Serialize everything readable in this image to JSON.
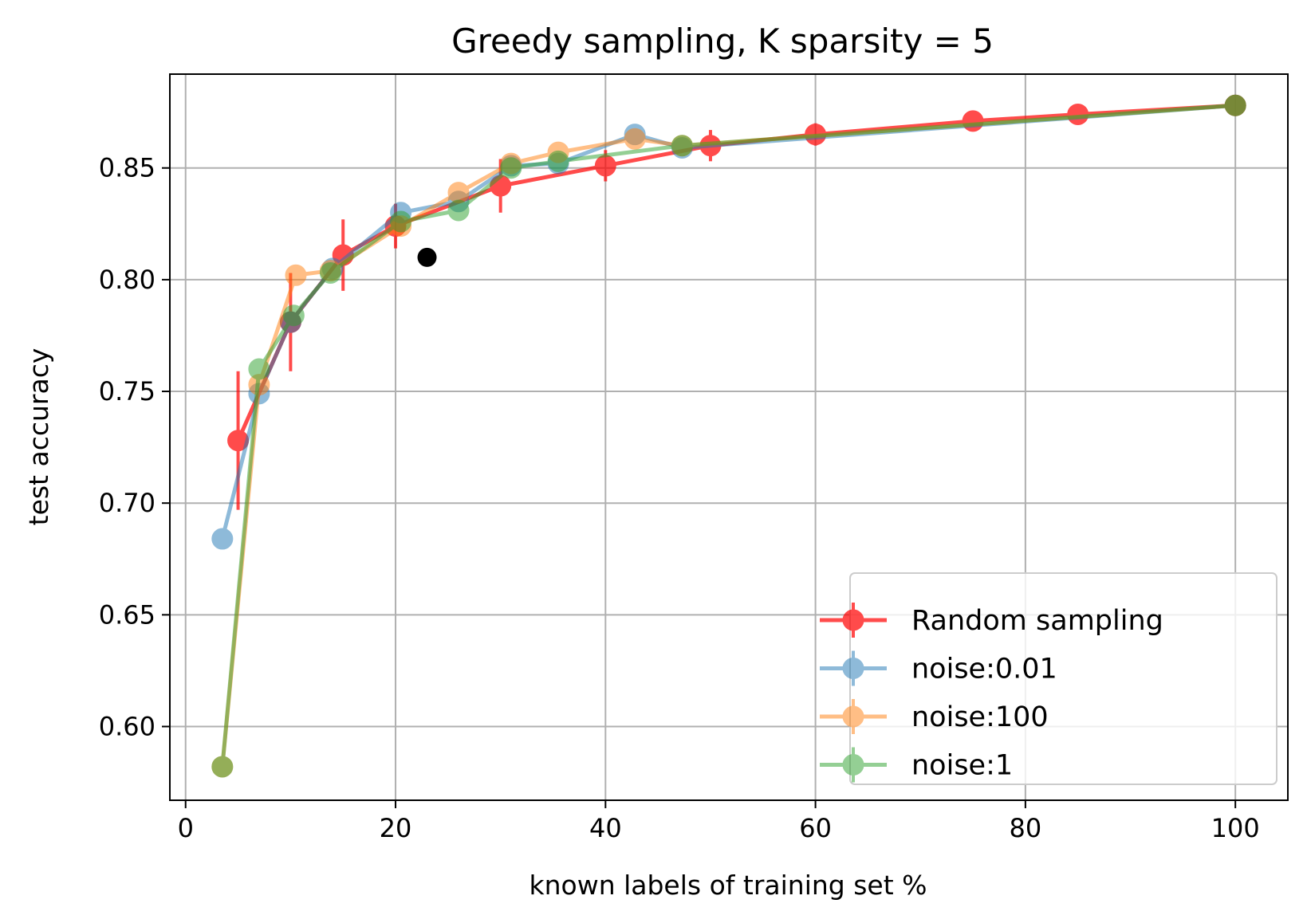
{
  "chart_data": {
    "type": "line",
    "title": "Greedy sampling, K sparsity = 5",
    "xlabel": "known labels of training set %",
    "ylabel": "test accuracy",
    "xlim": [
      -1.5,
      105
    ],
    "ylim": [
      0.567,
      0.892
    ],
    "xticks": [
      0,
      20,
      40,
      60,
      80,
      100
    ],
    "xtick_labels": [
      "0",
      "20",
      "40",
      "60",
      "80",
      "100"
    ],
    "yticks": [
      0.6,
      0.65,
      0.7,
      0.75,
      0.8,
      0.85
    ],
    "ytick_labels": [
      "0.60",
      "0.65",
      "0.70",
      "0.75",
      "0.80",
      "0.85"
    ],
    "grid": true,
    "legend_position": "lower-right",
    "series": [
      {
        "name": "Random sampling",
        "color": "#ff0000",
        "alpha": 0.7,
        "x": [
          5,
          10,
          15,
          20,
          30,
          40,
          50,
          60,
          75,
          85,
          100
        ],
        "y": [
          0.728,
          0.781,
          0.811,
          0.824,
          0.842,
          0.851,
          0.86,
          0.865,
          0.871,
          0.874,
          0.878
        ],
        "yerr": [
          0.031,
          0.022,
          0.016,
          0.01,
          0.012,
          0.007,
          0.007,
          0.005,
          0.003,
          0.002,
          0.001
        ]
      },
      {
        "name": "noise:0.01",
        "color": "#1f77b4",
        "alpha": 0.5,
        "x": [
          3.5,
          7,
          10,
          14,
          20.5,
          26,
          31,
          35.5,
          42.8,
          47.3,
          100
        ],
        "y": [
          0.684,
          0.749,
          0.781,
          0.805,
          0.83,
          0.835,
          0.851,
          0.852,
          0.865,
          0.859,
          0.878
        ],
        "yerr": [
          0,
          0,
          0,
          0,
          0,
          0,
          0,
          0,
          0,
          0,
          0
        ]
      },
      {
        "name": "noise:100",
        "color": "#ff7f0e",
        "alpha": 0.5,
        "x": [
          3.5,
          7,
          10.5,
          13.8,
          20.5,
          26,
          31,
          35.5,
          42.8,
          47.3,
          100
        ],
        "y": [
          0.582,
          0.753,
          0.802,
          0.804,
          0.824,
          0.839,
          0.852,
          0.857,
          0.863,
          0.86,
          0.878
        ],
        "yerr": [
          0,
          0,
          0,
          0,
          0,
          0,
          0,
          0,
          0,
          0,
          0
        ]
      },
      {
        "name": "noise:1",
        "color": "#2ca02c",
        "alpha": 0.5,
        "x": [
          3.5,
          7,
          10.3,
          13.8,
          20.5,
          26,
          31,
          35.5,
          47.3,
          100
        ],
        "y": [
          0.582,
          0.76,
          0.784,
          0.803,
          0.826,
          0.831,
          0.85,
          0.853,
          0.86,
          0.878
        ],
        "yerr": [
          0,
          0,
          0,
          0,
          0,
          0,
          0,
          0,
          0,
          0
        ]
      }
    ],
    "extra_points": [
      {
        "x": 23,
        "y": 0.81,
        "color": "#000000"
      }
    ]
  }
}
